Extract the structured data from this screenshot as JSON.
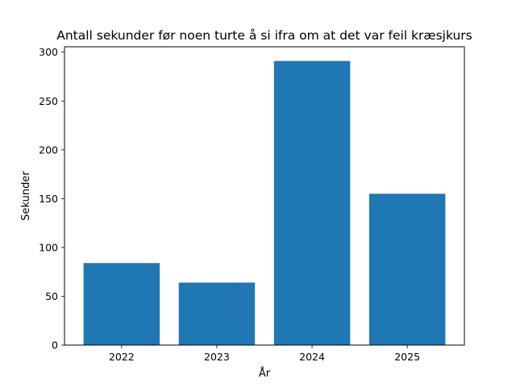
{
  "chart_data": {
    "type": "bar",
    "title": "Antall sekunder før noen turte å si ifra om at det var feil kræsjkurs",
    "xlabel": "År",
    "ylabel": "Sekunder",
    "categories": [
      "2022",
      "2023",
      "2024",
      "2025"
    ],
    "values": [
      84,
      64,
      291,
      155
    ],
    "ylim": [
      0,
      305.55
    ],
    "yticks": [
      0,
      50,
      100,
      150,
      200,
      250,
      300
    ],
    "ytick_labels": [
      "0",
      "50",
      "100",
      "150",
      "200",
      "250",
      "300"
    ],
    "bar_color": "#1f77b4",
    "grid": false,
    "legend": "none"
  }
}
